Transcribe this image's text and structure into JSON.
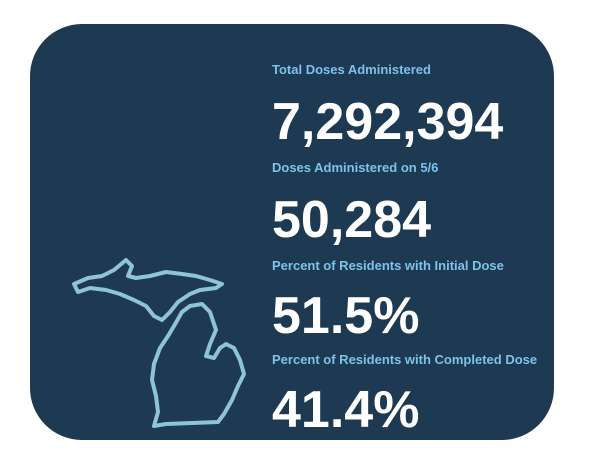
{
  "colors": {
    "card_background": "#1e3a52",
    "label": "#7dc2e8",
    "value": "#ffffff",
    "map_outline": "#8ec3d8"
  },
  "map_icon": "michigan-outline-icon",
  "stats": [
    {
      "label": "Total Doses Administered",
      "value": "7,292,394"
    },
    {
      "label": "Doses Administered on 5/6",
      "value": "50,284"
    },
    {
      "label": "Percent of Residents with Initial Dose",
      "value": "51.5%"
    },
    {
      "label": "Percent of Residents with Completed Dose",
      "value": "41.4%"
    }
  ]
}
